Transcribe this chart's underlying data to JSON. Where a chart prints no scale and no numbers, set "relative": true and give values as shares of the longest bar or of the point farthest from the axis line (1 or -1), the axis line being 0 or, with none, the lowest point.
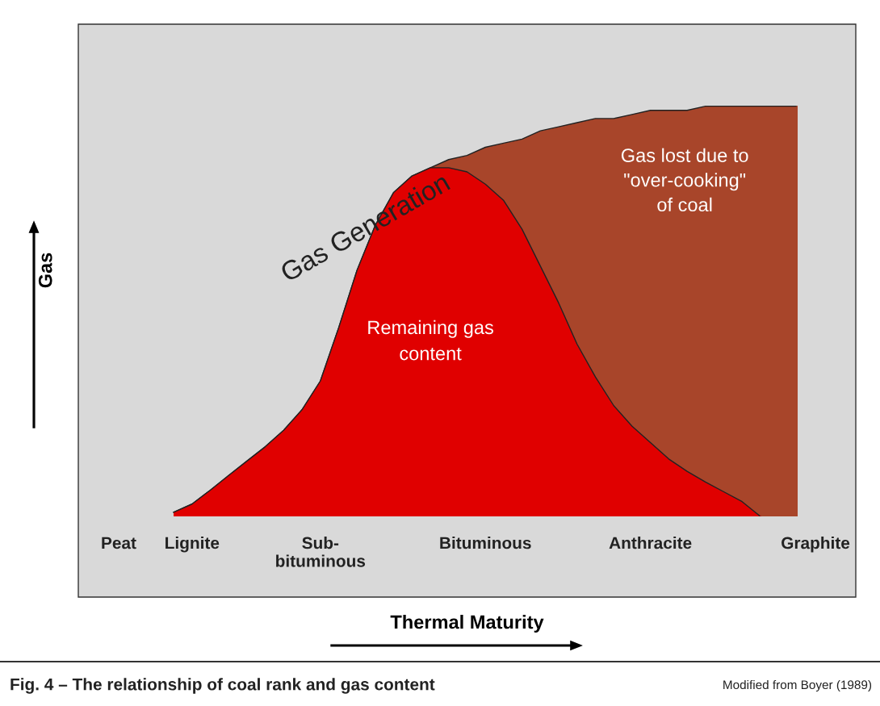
{
  "chart_data": {
    "type": "area",
    "relative": true,
    "xlabel": "Thermal Maturity",
    "ylabel": "Gas",
    "categories": [
      "Peat",
      null,
      null,
      null,
      "Lignite",
      null,
      null,
      null,
      null,
      null,
      null,
      "Sub-\nbituminous",
      null,
      null,
      null,
      null,
      null,
      null,
      null,
      null,
      "Bituminous",
      null,
      null,
      null,
      null,
      null,
      null,
      null,
      null,
      "Anthracite",
      null,
      null,
      null,
      null,
      null,
      null,
      null,
      null,
      "Graphite"
    ],
    "series": [
      {
        "name": "Gas Generation",
        "color": "#a8452a",
        "values": [
          null,
          null,
          null,
          0.01,
          0.03,
          0.064,
          0.1,
          0.135,
          0.17,
          0.21,
          0.26,
          0.33,
          0.46,
          0.6,
          0.71,
          0.79,
          0.83,
          0.85,
          0.87,
          0.88,
          0.9,
          0.91,
          0.92,
          0.94,
          0.95,
          0.96,
          0.97,
          0.97,
          0.98,
          0.99,
          0.99,
          0.99,
          1,
          1,
          1,
          1,
          1,
          1,
          null
        ]
      },
      {
        "name": "Remaining gas content",
        "color": "#e00000",
        "values": [
          null,
          null,
          null,
          0.01,
          0.03,
          0.064,
          0.1,
          0.135,
          0.17,
          0.21,
          0.26,
          0.33,
          0.46,
          0.6,
          0.71,
          0.79,
          0.83,
          0.85,
          0.85,
          0.84,
          0.81,
          0.77,
          0.7,
          0.61,
          0.52,
          0.42,
          0.34,
          0.27,
          0.22,
          0.18,
          0.14,
          0.11,
          0.084,
          0.06,
          0.036,
          0,
          null,
          null,
          null
        ]
      }
    ],
    "annotations": [
      "Gas lost due to\n\"over-cooking\"\nof coal",
      "Fig. 4 – The relationship of coal rank and gas content",
      "Modified from Boyer (1989)"
    ],
    "grid": false,
    "legend": false
  }
}
